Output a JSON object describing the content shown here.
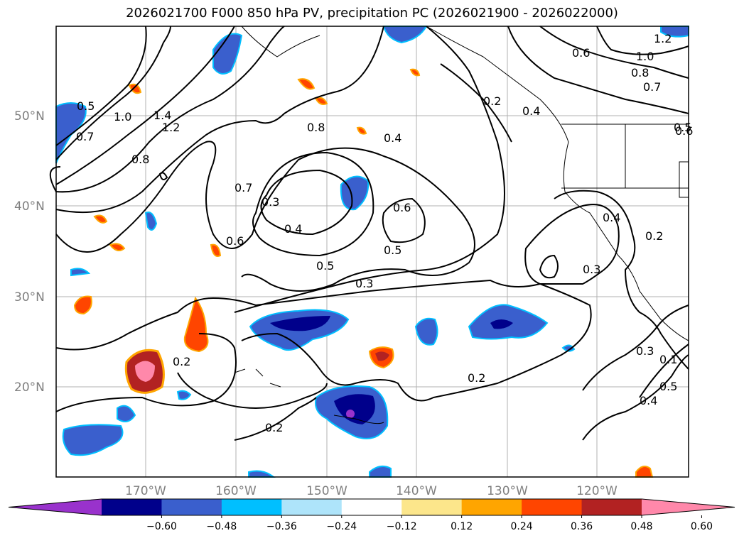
{
  "title": "2026021700 F000 850 hPa PV, precipitation PC (2026021900 - 2026022000)",
  "lat_ticks": [
    "50°N",
    "40°N",
    "30°N",
    "20°N"
  ],
  "lon_ticks": [
    "170°W",
    "160°W",
    "150°W",
    "140°W",
    "130°W",
    "120°W"
  ],
  "colorbar": {
    "ticks": [
      "−0.60",
      "−0.48",
      "−0.36",
      "−0.24",
      "−0.12",
      "0.12",
      "0.24",
      "0.36",
      "0.48",
      "0.60"
    ],
    "colors": [
      "#9932cc",
      "#00008b",
      "#3a5fcd",
      "#00bfff",
      "#aee4fa",
      "#ffffff",
      "#fce68b",
      "#ffa500",
      "#ff4500",
      "#b22222",
      "#ff88aa"
    ]
  },
  "contour_labels": [
    "1.2",
    "1.0",
    "0.8",
    "0.7",
    "0.6",
    "0.5",
    "0.5",
    "1.0",
    "1.4",
    "1.2",
    "0.8",
    "0.8",
    "0.7",
    "0.6",
    "0.3",
    "0.4",
    "0.5",
    "0.3",
    "0.4",
    "0.6",
    "0.5",
    "0.2",
    "0.4",
    "0.2",
    "0.2",
    "0.2",
    "0.4",
    "0.2",
    "0.3",
    "0.3",
    "0.1",
    "0.5",
    "0.4",
    "0.7",
    "0.6"
  ]
}
